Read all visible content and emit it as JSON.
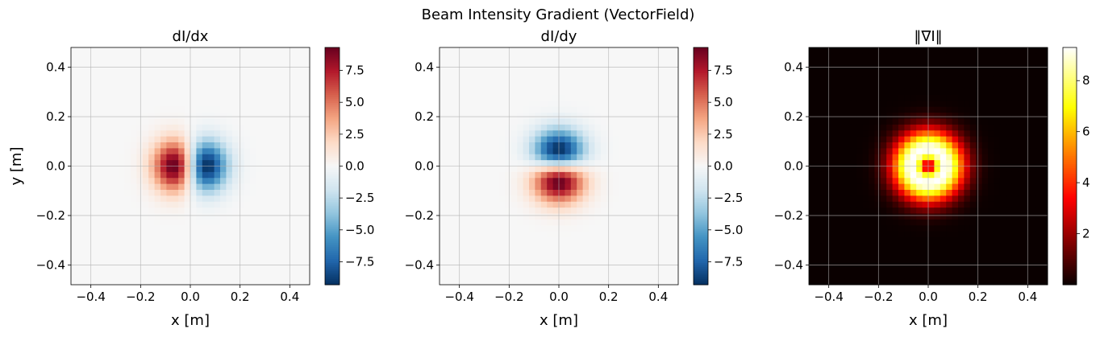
{
  "figure": {
    "title": "Beam Intensity Gradient (VectorField)"
  },
  "chart_data": [
    {
      "type": "heatmap",
      "title": "dI/dx",
      "xlabel": "x [m]",
      "ylabel": "y [m]",
      "xlim": [
        -0.48,
        0.48
      ],
      "ylim": [
        -0.48,
        0.48
      ],
      "xticks": [
        -0.4,
        -0.2,
        0.0,
        0.2,
        0.4
      ],
      "yticks": [
        -0.4,
        -0.2,
        0.0,
        0.2,
        0.4
      ],
      "xtick_labels": [
        "−0.4",
        "−0.2",
        "0.0",
        "0.2",
        "0.4"
      ],
      "ytick_labels": [
        "−0.4",
        "−0.2",
        "0.0",
        "0.2",
        "0.4"
      ],
      "grid": true,
      "grid_size": 40,
      "field": "dIdx",
      "colormap": "RdBu_r",
      "vmin": -9.3,
      "vmax": 9.3,
      "colorbar_ticks": [
        -7.5,
        -5.0,
        -2.5,
        0.0,
        2.5,
        5.0,
        7.5
      ],
      "colorbar_labels": [
        "−7.5",
        "−5.0",
        "−2.5",
        "0.0",
        "2.5",
        "5.0",
        "7.5"
      ],
      "extrema": [
        {
          "x": -0.07,
          "y": 0.0,
          "value": 9.3
        },
        {
          "x": 0.07,
          "y": 0.0,
          "value": -9.3
        }
      ]
    },
    {
      "type": "heatmap",
      "title": "dI/dy",
      "xlabel": "x [m]",
      "ylabel": "",
      "xlim": [
        -0.48,
        0.48
      ],
      "ylim": [
        -0.48,
        0.48
      ],
      "xticks": [
        -0.4,
        -0.2,
        0.0,
        0.2,
        0.4
      ],
      "yticks": [
        -0.4,
        -0.2,
        0.0,
        0.2,
        0.4
      ],
      "xtick_labels": [
        "−0.4",
        "−0.2",
        "0.0",
        "0.2",
        "0.4"
      ],
      "ytick_labels": [
        "−0.4",
        "−0.2",
        "0.0",
        "0.2",
        "0.4"
      ],
      "grid": true,
      "grid_size": 40,
      "field": "dIdy",
      "colormap": "RdBu_r",
      "vmin": -9.3,
      "vmax": 9.3,
      "colorbar_ticks": [
        -7.5,
        -5.0,
        -2.5,
        0.0,
        2.5,
        5.0,
        7.5
      ],
      "colorbar_labels": [
        "−7.5",
        "−5.0",
        "−2.5",
        "0.0",
        "2.5",
        "5.0",
        "7.5"
      ],
      "extrema": [
        {
          "x": 0.0,
          "y": -0.07,
          "value": 9.3
        },
        {
          "x": 0.0,
          "y": 0.07,
          "value": -9.3
        }
      ]
    },
    {
      "type": "heatmap",
      "title": "‖∇I‖",
      "xlabel": "x [m]",
      "ylabel": "",
      "xlim": [
        -0.48,
        0.48
      ],
      "ylim": [
        -0.48,
        0.48
      ],
      "xticks": [
        -0.4,
        -0.2,
        0.0,
        0.2,
        0.4
      ],
      "yticks": [
        -0.4,
        -0.2,
        0.0,
        0.2,
        0.4
      ],
      "xtick_labels": [
        "−0.4",
        "−0.2",
        "0.0",
        "0.2",
        "0.4"
      ],
      "ytick_labels": [
        "−0.4",
        "−0.2",
        "0.0",
        "0.2",
        "0.4"
      ],
      "grid": true,
      "grid_size": 40,
      "field": "gradmag",
      "colormap": "hot",
      "vmin": 0.0,
      "vmax": 9.3,
      "colorbar_ticks": [
        2,
        4,
        6,
        8
      ],
      "colorbar_labels": [
        "2",
        "4",
        "6",
        "8"
      ],
      "ring_radius": 0.07,
      "center_value": 0.0,
      "max_value": 9.3
    }
  ]
}
